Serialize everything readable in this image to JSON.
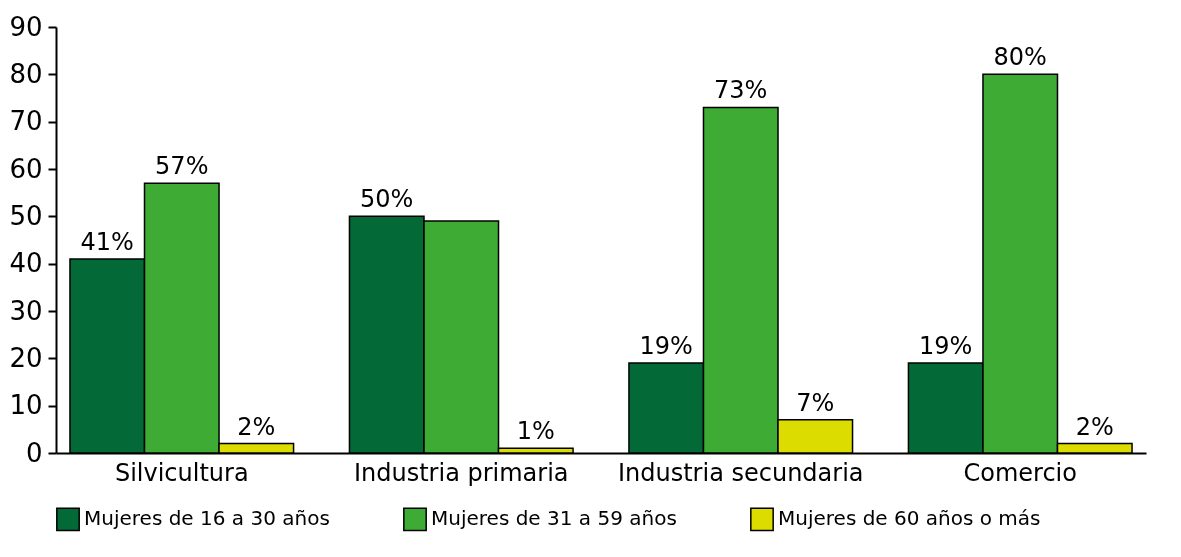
{
  "chart_data": {
    "type": "bar",
    "categories": [
      "Silvicultura",
      "Industria primaria",
      "Industria secundaria",
      "Comercio"
    ],
    "series": [
      {
        "name": "Mujeres de 16 a 30 años",
        "color": "#036a37",
        "values": [
          41,
          50,
          19,
          19
        ],
        "value_labels": [
          "41%",
          "50%",
          "19%",
          "19%"
        ]
      },
      {
        "name": "Mujeres de 31 a 59 años",
        "color": "#3eab35",
        "values": [
          57,
          49,
          73,
          80
        ],
        "value_labels": [
          "57%",
          null,
          "73%",
          "80%"
        ]
      },
      {
        "name": "Mujeres de 60 años o más",
        "color": "#dcdc00",
        "values": [
          2,
          1,
          7,
          2
        ],
        "value_labels": [
          "2%",
          "1%",
          "7%",
          "2%"
        ]
      }
    ],
    "ylim": [
      0,
      90
    ],
    "yticks": [
      0,
      10,
      20,
      30,
      40,
      50,
      60,
      70,
      80,
      90
    ],
    "grid": false,
    "legend": "bottom"
  }
}
